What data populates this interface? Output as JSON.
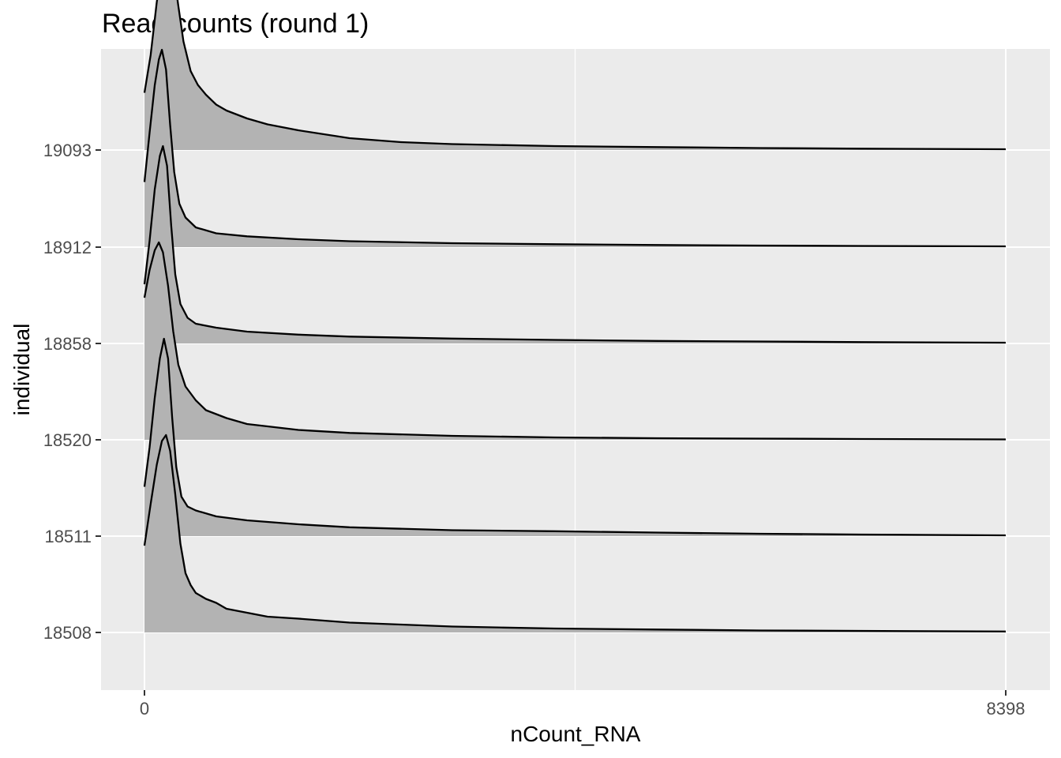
{
  "chart_data": {
    "type": "ridgeline",
    "title": "Read counts (round 1)",
    "xlabel": "nCount_RNA",
    "ylabel": "individual",
    "xlim": [
      0,
      8398
    ],
    "x_ticks": [
      "0",
      "8398"
    ],
    "grid": true,
    "fill_color": "#b3b3b3",
    "line_color": "#000000",
    "panel_color": "#ebebeb",
    "series": [
      {
        "name": "18508",
        "points": [
          [
            0,
            0.44
          ],
          [
            60,
            0.65
          ],
          [
            120,
            0.85
          ],
          [
            170,
            0.97
          ],
          [
            210,
            1.0
          ],
          [
            250,
            0.92
          ],
          [
            300,
            0.7
          ],
          [
            350,
            0.45
          ],
          [
            400,
            0.3
          ],
          [
            450,
            0.24
          ],
          [
            500,
            0.2
          ],
          [
            600,
            0.17
          ],
          [
            700,
            0.15
          ],
          [
            800,
            0.12
          ],
          [
            1000,
            0.1
          ],
          [
            1200,
            0.08
          ],
          [
            1500,
            0.07
          ],
          [
            2000,
            0.05
          ],
          [
            2500,
            0.04
          ],
          [
            3000,
            0.03
          ],
          [
            3500,
            0.025
          ],
          [
            4000,
            0.02
          ],
          [
            5000,
            0.015
          ],
          [
            6000,
            0.01
          ],
          [
            7000,
            0.008
          ],
          [
            8398,
            0.005
          ]
        ]
      },
      {
        "name": "18511",
        "points": [
          [
            0,
            0.25
          ],
          [
            50,
            0.45
          ],
          [
            100,
            0.7
          ],
          [
            150,
            0.9
          ],
          [
            190,
            1.0
          ],
          [
            230,
            0.9
          ],
          [
            270,
            0.6
          ],
          [
            310,
            0.35
          ],
          [
            360,
            0.2
          ],
          [
            420,
            0.15
          ],
          [
            500,
            0.13
          ],
          [
            700,
            0.1
          ],
          [
            1000,
            0.08
          ],
          [
            1500,
            0.06
          ],
          [
            2000,
            0.045
          ],
          [
            3000,
            0.03
          ],
          [
            4000,
            0.025
          ],
          [
            5000,
            0.018
          ],
          [
            6000,
            0.012
          ],
          [
            7000,
            0.008
          ],
          [
            8398,
            0.004
          ]
        ]
      },
      {
        "name": "18520",
        "points": [
          [
            0,
            0.72
          ],
          [
            50,
            0.86
          ],
          [
            100,
            0.96
          ],
          [
            140,
            1.0
          ],
          [
            180,
            0.95
          ],
          [
            230,
            0.78
          ],
          [
            280,
            0.55
          ],
          [
            330,
            0.38
          ],
          [
            400,
            0.27
          ],
          [
            500,
            0.2
          ],
          [
            600,
            0.15
          ],
          [
            800,
            0.11
          ],
          [
            1000,
            0.08
          ],
          [
            1500,
            0.05
          ],
          [
            2000,
            0.035
          ],
          [
            3000,
            0.02
          ],
          [
            4000,
            0.012
          ],
          [
            5000,
            0.008
          ],
          [
            6000,
            0.006
          ],
          [
            7000,
            0.004
          ],
          [
            8398,
            0.002
          ]
        ]
      },
      {
        "name": "18858",
        "points": [
          [
            0,
            0.3
          ],
          [
            50,
            0.52
          ],
          [
            100,
            0.78
          ],
          [
            150,
            0.95
          ],
          [
            180,
            1.0
          ],
          [
            220,
            0.9
          ],
          [
            260,
            0.6
          ],
          [
            300,
            0.35
          ],
          [
            350,
            0.2
          ],
          [
            420,
            0.13
          ],
          [
            500,
            0.1
          ],
          [
            700,
            0.08
          ],
          [
            1000,
            0.06
          ],
          [
            1500,
            0.045
          ],
          [
            2000,
            0.035
          ],
          [
            3000,
            0.025
          ],
          [
            4000,
            0.018
          ],
          [
            5000,
            0.013
          ],
          [
            6000,
            0.01
          ],
          [
            7000,
            0.007
          ],
          [
            8398,
            0.004
          ]
        ]
      },
      {
        "name": "18912",
        "points": [
          [
            0,
            0.33
          ],
          [
            50,
            0.58
          ],
          [
            100,
            0.82
          ],
          [
            140,
            0.95
          ],
          [
            170,
            1.0
          ],
          [
            210,
            0.9
          ],
          [
            250,
            0.62
          ],
          [
            290,
            0.38
          ],
          [
            340,
            0.22
          ],
          [
            400,
            0.15
          ],
          [
            500,
            0.1
          ],
          [
            700,
            0.07
          ],
          [
            1000,
            0.055
          ],
          [
            1500,
            0.04
          ],
          [
            2000,
            0.03
          ],
          [
            3000,
            0.02
          ],
          [
            4000,
            0.015
          ],
          [
            5000,
            0.011
          ],
          [
            6000,
            0.008
          ],
          [
            7000,
            0.006
          ],
          [
            8398,
            0.004
          ]
        ]
      },
      {
        "name": "19093",
        "points": [
          [
            0,
            0.29
          ],
          [
            60,
            0.48
          ],
          [
            120,
            0.75
          ],
          [
            180,
            0.95
          ],
          [
            230,
            1.0
          ],
          [
            280,
            0.92
          ],
          [
            330,
            0.73
          ],
          [
            380,
            0.55
          ],
          [
            450,
            0.4
          ],
          [
            520,
            0.33
          ],
          [
            600,
            0.28
          ],
          [
            700,
            0.23
          ],
          [
            800,
            0.2
          ],
          [
            1000,
            0.16
          ],
          [
            1200,
            0.13
          ],
          [
            1500,
            0.1
          ],
          [
            2000,
            0.06
          ],
          [
            2500,
            0.04
          ],
          [
            3000,
            0.03
          ],
          [
            4000,
            0.02
          ],
          [
            5000,
            0.015
          ],
          [
            6000,
            0.01
          ],
          [
            7000,
            0.007
          ],
          [
            8398,
            0.004
          ]
        ]
      }
    ]
  }
}
